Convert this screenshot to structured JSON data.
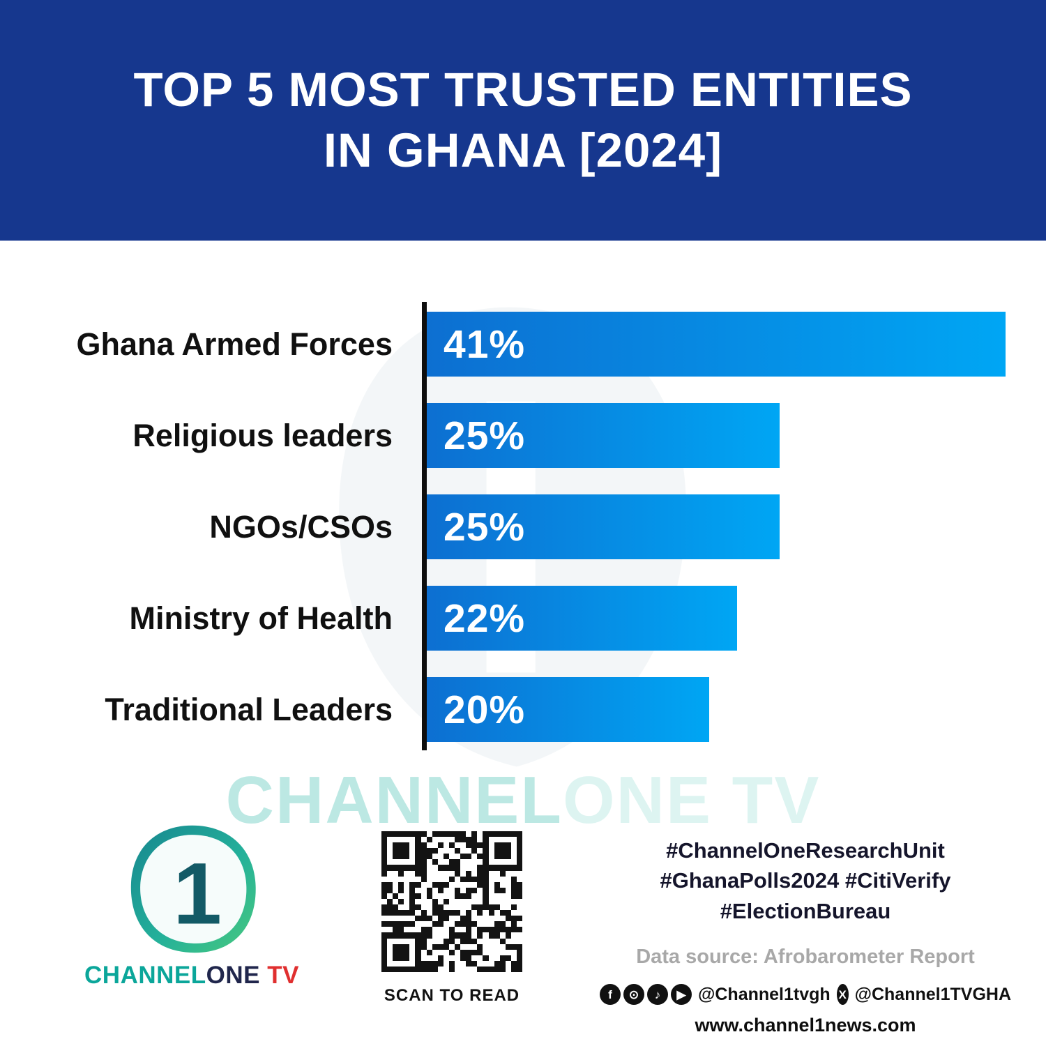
{
  "header": {
    "title_line1": "TOP 5 MOST TRUSTED ENTITIES",
    "title_line2": "IN GHANA [2024]"
  },
  "chart_data": {
    "type": "bar",
    "orientation": "horizontal",
    "title": "Top 5 Most Trusted Entities in Ghana [2024]",
    "categories": [
      "Ghana Armed Forces",
      "Religious leaders",
      "NGOs/CSOs",
      "Ministry of Health",
      "Traditional Leaders"
    ],
    "values": [
      41,
      25,
      25,
      22,
      20
    ],
    "labels": [
      "41%",
      "25%",
      "25%",
      "22%",
      "20%"
    ],
    "xlim": [
      0,
      41
    ],
    "grid": false,
    "legend": false,
    "bar_gradient": [
      "#0d6fd1",
      "#00a6f4"
    ]
  },
  "watermark": {
    "part1": "CHANNEL",
    "part2": "ONE TV"
  },
  "footer": {
    "brand": {
      "channel": "CHANNEL",
      "one": "ONE",
      "tv": " TV"
    },
    "qr_caption": "SCAN TO READ",
    "hashtags_line1": "#ChannelOneResearchUnit",
    "hashtags_line2": "#GhanaPolls2024 #CitiVerify",
    "hashtags_line3": "#ElectionBureau",
    "data_source": "Data source: Afrobarometer Report",
    "handle_primary": "@Channel1tvgh",
    "handle_x": "@Channel1TVGHA",
    "website": "www.channel1news.com"
  },
  "colors": {
    "banner_blue": "#16378e",
    "bar_start": "#0d6fd1",
    "bar_end": "#00a6f4",
    "brand_teal": "#0ba69a",
    "brand_navy": "#20264c",
    "brand_red": "#e02f2f"
  }
}
